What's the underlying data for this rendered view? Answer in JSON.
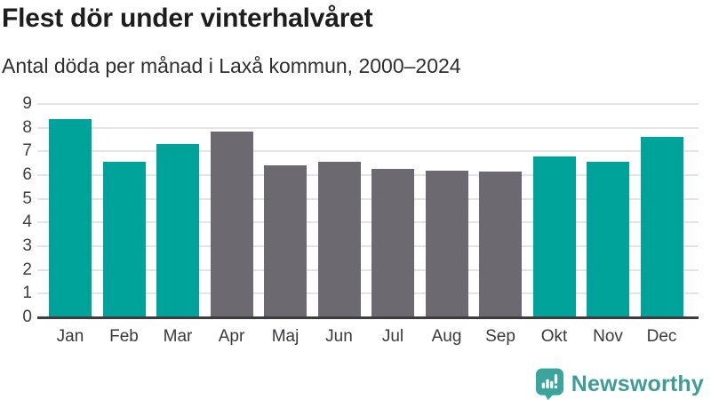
{
  "header": {
    "title": "Flest dör under vinterhalvåret",
    "subtitle": "Antal döda per månad i Laxå kommun, 2000–2024"
  },
  "chart_data": {
    "type": "bar",
    "title": "Flest dör under vinterhalvåret",
    "subtitle": "Antal döda per månad i Laxå kommun, 2000–2024",
    "categories": [
      "Jan",
      "Feb",
      "Mar",
      "Apr",
      "Maj",
      "Jun",
      "Jul",
      "Aug",
      "Sep",
      "Okt",
      "Nov",
      "Dec"
    ],
    "values": [
      8.35,
      6.55,
      7.3,
      7.85,
      6.4,
      6.55,
      6.25,
      6.2,
      6.15,
      6.8,
      6.55,
      7.6
    ],
    "bar_groups": [
      "winter",
      "winter",
      "winter",
      "summer",
      "summer",
      "summer",
      "summer",
      "summer",
      "summer",
      "winter",
      "winter",
      "winter"
    ],
    "group_colors": {
      "winter": "#00a39a",
      "summer": "#6c6971"
    },
    "xlabel": "",
    "ylabel": "",
    "ylim": [
      0,
      9
    ],
    "yticks": [
      0,
      1,
      2,
      3,
      4,
      5,
      6,
      7,
      8,
      9
    ],
    "grid": true,
    "legend_position": "none"
  },
  "branding": {
    "logo_text": "Newsworthy",
    "logo_text_color": "#3f9c96",
    "logo_icon": "bar-chart-speech-bubble-icon",
    "logo_icon_color": "#3ba49c"
  }
}
